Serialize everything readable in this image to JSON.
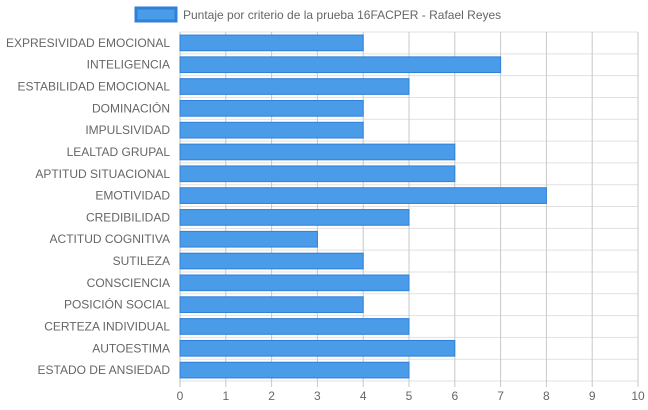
{
  "chart_data": {
    "type": "bar",
    "orientation": "horizontal",
    "legend": {
      "label": "Puntaje por criterio de la prueba 16FACPER - Rafael Reyes",
      "position": "top"
    },
    "categories": [
      "EXPRESIVIDAD EMOCIONAL",
      "INTELIGENCIA",
      "ESTABILIDAD EMOCIONAL",
      "DOMINACIÓN",
      "IMPULSIVIDAD",
      "LEALTAD GRUPAL",
      "APTITUD SITUACIONAL",
      "EMOTIVIDAD",
      "CREDIBILIDAD",
      "ACTITUD COGNITIVA",
      "SUTILEZA",
      "CONSCIENCIA",
      "POSICIÓN SOCIAL",
      "CERTEZA INDIVIDUAL",
      "AUTOESTIMA",
      "ESTADO DE ANSIEDAD"
    ],
    "series": [
      {
        "name": "Puntaje por criterio de la prueba 16FACPER - Rafael Reyes",
        "values": [
          4,
          7,
          5,
          4,
          4,
          6,
          6,
          8,
          5,
          3,
          4,
          5,
          4,
          5,
          6,
          5
        ]
      }
    ],
    "xlim": [
      0,
      10
    ],
    "xticks": [
      0,
      1,
      2,
      3,
      4,
      5,
      6,
      7,
      8,
      9,
      10
    ],
    "grid": true,
    "colors": {
      "bar_fill": "#4a9be8",
      "bar_border": "#2f80d8",
      "grid": "#e1e1e1",
      "axis": "#bdbdbd",
      "text": "#666666"
    }
  }
}
